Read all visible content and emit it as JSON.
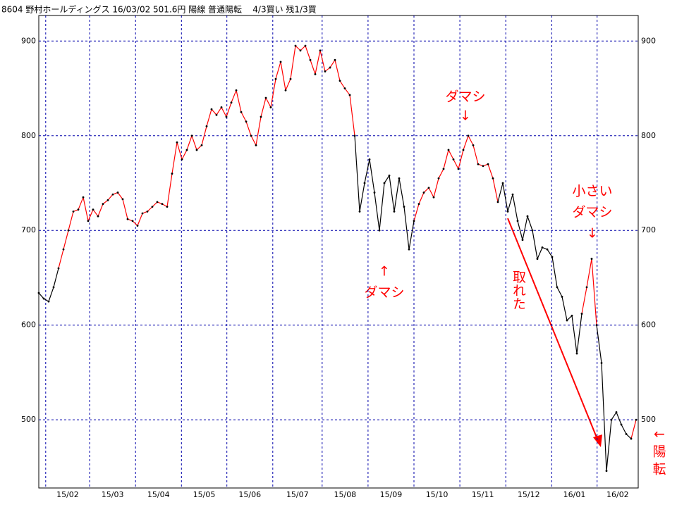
{
  "chart_data": {
    "type": "line",
    "title": "8604 野村ホールディングス 16/03/02 501.6円 陽線 普通陽転    4/3買い 残1/3買",
    "values": [
      634,
      628,
      625,
      640,
      660,
      680,
      700,
      720,
      722,
      735,
      710,
      722,
      715,
      728,
      732,
      738,
      740,
      733,
      712,
      710,
      705,
      718,
      720,
      725,
      730,
      728,
      725,
      760,
      793,
      775,
      785,
      800,
      785,
      790,
      810,
      828,
      822,
      830,
      820,
      835,
      848,
      825,
      815,
      800,
      790,
      820,
      840,
      830,
      860,
      878,
      848,
      860,
      895,
      890,
      895,
      880,
      865,
      890,
      868,
      872,
      880,
      858,
      850,
      843,
      800,
      720,
      750,
      775,
      740,
      700,
      750,
      758,
      720,
      755,
      725,
      680,
      710,
      728,
      740,
      745,
      735,
      755,
      765,
      785,
      775,
      765,
      785,
      800,
      790,
      770,
      768,
      770,
      755,
      730,
      750,
      720,
      738,
      710,
      690,
      715,
      700,
      670,
      682,
      680,
      672,
      640,
      630,
      605,
      610,
      570,
      612,
      640,
      670,
      600,
      560,
      446,
      500,
      508,
      495,
      485,
      480,
      500
    ],
    "colors": [
      "#000",
      "#000",
      "#000",
      "#000",
      "#000",
      "#f00",
      "#f00",
      "#f00",
      "#f00",
      "#f00",
      "#f00",
      "#f00",
      "#f00",
      "#f00",
      "#f00",
      "#f00",
      "#f00",
      "#f00",
      "#f00",
      "#f00",
      "#f00",
      "#f00",
      "#f00",
      "#f00",
      "#f00",
      "#f00",
      "#f00",
      "#f00",
      "#f00",
      "#f00",
      "#f00",
      "#f00",
      "#f00",
      "#f00",
      "#f00",
      "#f00",
      "#f00",
      "#f00",
      "#f00",
      "#f00",
      "#f00",
      "#f00",
      "#f00",
      "#f00",
      "#f00",
      "#f00",
      "#f00",
      "#f00",
      "#f00",
      "#f00",
      "#f00",
      "#f00",
      "#f00",
      "#f00",
      "#f00",
      "#f00",
      "#f00",
      "#f00",
      "#f00",
      "#f00",
      "#f00",
      "#f00",
      "#f00",
      "#f00",
      "#f00",
      "#000",
      "#000",
      "#000",
      "#000",
      "#000",
      "#000",
      "#000",
      "#000",
      "#000",
      "#000",
      "#000",
      "#000",
      "#f00",
      "#f00",
      "#f00",
      "#f00",
      "#f00",
      "#f00",
      "#f00",
      "#f00",
      "#f00",
      "#f00",
      "#f00",
      "#f00",
      "#f00",
      "#f00",
      "#f00",
      "#f00",
      "#f00",
      "#000",
      "#000",
      "#000",
      "#000",
      "#000",
      "#000",
      "#000",
      "#000",
      "#000",
      "#000",
      "#000",
      "#000",
      "#000",
      "#000",
      "#000",
      "#000",
      "#000",
      "#f00",
      "#f00",
      "#f00",
      "#000",
      "#000",
      "#000",
      "#000",
      "#000",
      "#000",
      "#000",
      "#f00"
    ],
    "marker_color": "#000000",
    "xlim": [
      0,
      121
    ],
    "xticks": [
      {
        "value": 1.4,
        "label": "15/02"
      },
      {
        "value": 10.3,
        "label": "15/03"
      },
      {
        "value": 19.6,
        "label": "15/04"
      },
      {
        "value": 28.9,
        "label": "15/05"
      },
      {
        "value": 38.1,
        "label": "15/06"
      },
      {
        "value": 47.4,
        "label": "15/07"
      },
      {
        "value": 57.4,
        "label": "15/08"
      },
      {
        "value": 66.7,
        "label": "15/09"
      },
      {
        "value": 76,
        "label": "15/10"
      },
      {
        "value": 85.3,
        "label": "15/11"
      },
      {
        "value": 94.6,
        "label": "15/12"
      },
      {
        "value": 103.9,
        "label": "16/01"
      },
      {
        "value": 113.1,
        "label": "16/02"
      }
    ],
    "ylim": [
      428,
      927
    ],
    "yticks": [
      500,
      600,
      700,
      800,
      900
    ],
    "grid": true,
    "grid_color": "#0000aa",
    "annotations": [
      "ダマシ",
      "↓",
      "↑",
      "ダマシ",
      "小さい",
      "ダマシ",
      "↓",
      "取れた",
      "←",
      "陽",
      "転"
    ],
    "annotation_color": "#ff0000"
  }
}
